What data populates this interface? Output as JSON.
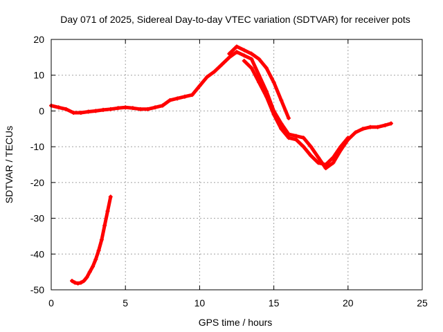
{
  "chart_data": {
    "type": "scatter",
    "title": "Day 071 of 2025, Sidereal Day-to-day VTEC variation (SDTVAR) for receiver pots",
    "xlabel": "GPS time / hours",
    "ylabel": "SDTVAR / TECUs",
    "xlim": [
      0,
      25
    ],
    "ylim": [
      -50,
      20
    ],
    "xticks": [
      0,
      5,
      10,
      15,
      20,
      25
    ],
    "yticks": [
      -50,
      -40,
      -30,
      -20,
      -10,
      0,
      10,
      20
    ],
    "grid": true,
    "marker": "+",
    "series_color": "#ff0000",
    "series": [
      {
        "name": "main arc",
        "x": [
          0.0,
          0.5,
          1.0,
          1.5,
          2.0,
          2.5,
          3.0,
          3.5,
          4.0,
          4.5,
          5.0,
          5.5,
          6.0,
          6.5,
          7.0,
          7.5,
          8.0,
          8.5,
          9.0,
          9.5,
          10.0,
          10.5,
          11.0,
          11.5,
          12.0,
          12.5,
          13.0,
          13.5,
          14.0,
          14.5,
          15.0,
          15.5,
          16.0,
          16.5,
          17.0,
          17.5,
          18.0,
          18.5,
          19.0,
          19.5,
          20.0,
          20.5,
          21.0,
          21.5,
          22.0,
          22.5,
          22.9
        ],
        "y": [
          1.5,
          1.0,
          0.5,
          -0.5,
          -0.5,
          -0.2,
          0.0,
          0.3,
          0.5,
          0.8,
          1.0,
          0.8,
          0.5,
          0.5,
          1.0,
          1.5,
          3.0,
          3.5,
          4.0,
          4.5,
          7.0,
          9.5,
          11.0,
          13.0,
          15.0,
          16.5,
          15.5,
          14.5,
          10.0,
          5.5,
          0.0,
          -3.5,
          -6.5,
          -7.0,
          -7.5,
          -10.0,
          -13.0,
          -16.0,
          -14.5,
          -11.0,
          -8.0,
          -6.0,
          -5.0,
          -4.5,
          -4.5,
          -4.0,
          -3.5
        ]
      },
      {
        "name": "upper band",
        "x": [
          12.0,
          12.5,
          13.0,
          13.5,
          14.0,
          14.5,
          15.0,
          15.5,
          16.0
        ],
        "y": [
          16.0,
          18.0,
          17.0,
          16.0,
          14.5,
          12.0,
          8.0,
          3.0,
          -2.0
        ]
      },
      {
        "name": "lower band",
        "x": [
          13.0,
          13.5,
          14.0,
          14.5,
          15.0,
          15.5,
          16.0,
          16.5,
          17.0,
          17.5,
          18.0,
          18.5,
          19.0,
          19.5,
          20.0
        ],
        "y": [
          14.0,
          12.0,
          8.0,
          4.0,
          -1.0,
          -5.0,
          -7.5,
          -8.0,
          -10.0,
          -12.5,
          -14.5,
          -15.0,
          -13.0,
          -10.0,
          -7.5
        ]
      },
      {
        "name": "low arc",
        "x": [
          1.4,
          1.6,
          1.8,
          2.0,
          2.2,
          2.4,
          2.6,
          2.8,
          3.0,
          3.2,
          3.4,
          3.6,
          3.8,
          4.0
        ],
        "y": [
          -47.5,
          -48.0,
          -48.2,
          -48.0,
          -47.5,
          -46.5,
          -45.0,
          -43.5,
          -41.5,
          -39.0,
          -36.0,
          -32.0,
          -28.0,
          -24.0
        ]
      }
    ]
  }
}
